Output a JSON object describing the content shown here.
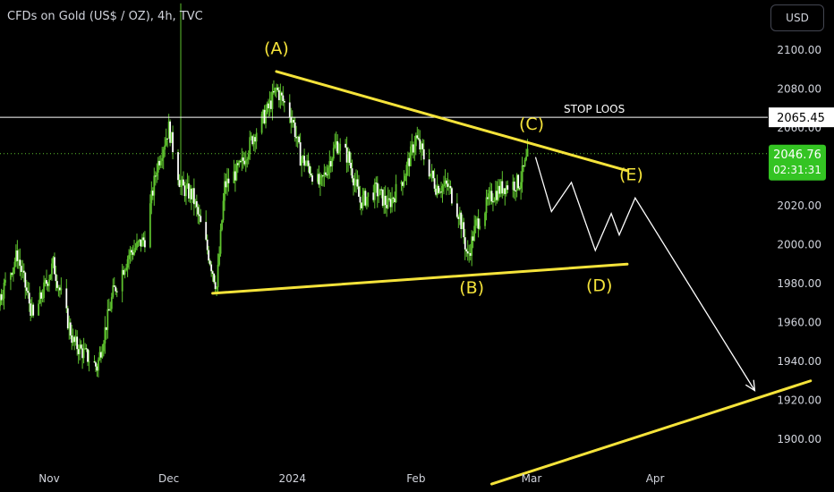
{
  "header": {
    "title": "CFDs on Gold (US$ / OZ), 4h, TVC",
    "currency_button": "USD"
  },
  "colors": {
    "background": "#000000",
    "candle": "#5ec22e",
    "annotation": "#f5e33a",
    "axis_text": "#d1d4dc",
    "price_label_bg": "#34c423"
  },
  "chart_data": {
    "type": "candlestick",
    "series": [
      {
        "name": "CFDs on Gold (US$ / OZ), 4h, TVC",
        "resolution": "4h"
      }
    ],
    "x_tick_labels": [
      "Nov",
      "Dec",
      "2024",
      "Feb",
      "Mar",
      "Apr"
    ],
    "y_ticks": [
      1900,
      1920,
      1940,
      1960,
      1980,
      2000,
      2020,
      2040,
      2060,
      2080,
      2100
    ],
    "y_tick_labels": [
      "1900.00",
      "1920.00",
      "1940.00",
      "1960.00",
      "1980.00",
      "2000.00",
      "2020.00",
      "2040.00",
      "2060.00",
      "2080.00",
      "2100.00"
    ],
    "ylim": [
      1877,
      2125
    ],
    "grid": false,
    "anchor_closes": [
      {
        "t": "2023-10-03",
        "v": 1975
      },
      {
        "t": "2023-10-10",
        "v": 2000
      },
      {
        "t": "2023-10-17",
        "v": 1960
      },
      {
        "t": "2023-10-24",
        "v": 1995
      },
      {
        "t": "2023-10-28",
        "v": 1962
      },
      {
        "t": "2023-11-02",
        "v": 1990
      },
      {
        "t": "2023-11-07",
        "v": 1950
      },
      {
        "t": "2023-11-13",
        "v": 1937
      },
      {
        "t": "2023-11-17",
        "v": 1975
      },
      {
        "t": "2023-11-21",
        "v": 1995
      },
      {
        "t": "2023-11-25",
        "v": 2003
      },
      {
        "t": "2023-11-28",
        "v": 2040
      },
      {
        "t": "2023-12-01",
        "v": 2060
      },
      {
        "t": "2023-12-04",
        "v": 2030
      },
      {
        "t": "2023-12-07",
        "v": 2025
      },
      {
        "t": "2023-12-11",
        "v": 1995
      },
      {
        "t": "2023-12-13",
        "v": 1978
      },
      {
        "t": "2023-12-15",
        "v": 2030
      },
      {
        "t": "2023-12-19",
        "v": 2040
      },
      {
        "t": "2023-12-22",
        "v": 2055
      },
      {
        "t": "2023-12-26",
        "v": 2070
      },
      {
        "t": "2023-12-28",
        "v": 2080
      },
      {
        "t": "2024-01-01",
        "v": 2065
      },
      {
        "t": "2024-01-03",
        "v": 2045
      },
      {
        "t": "2024-01-05",
        "v": 2040
      },
      {
        "t": "2024-01-08",
        "v": 2030
      },
      {
        "t": "2024-01-12",
        "v": 2052
      },
      {
        "t": "2024-01-15",
        "v": 2045
      },
      {
        "t": "2024-01-18",
        "v": 2022
      },
      {
        "t": "2024-01-22",
        "v": 2028
      },
      {
        "t": "2024-01-25",
        "v": 2020
      },
      {
        "t": "2024-01-29",
        "v": 2035
      },
      {
        "t": "2024-02-01",
        "v": 2055
      },
      {
        "t": "2024-02-03",
        "v": 2045
      },
      {
        "t": "2024-02-06",
        "v": 2030
      },
      {
        "t": "2024-02-09",
        "v": 2030
      },
      {
        "t": "2024-02-12",
        "v": 2015
      },
      {
        "t": "2024-02-14",
        "v": 1993
      },
      {
        "t": "2024-02-16",
        "v": 2010
      },
      {
        "t": "2024-02-20",
        "v": 2025
      },
      {
        "t": "2024-02-23",
        "v": 2030
      },
      {
        "t": "2024-02-27",
        "v": 2032
      },
      {
        "t": "2024-02-29",
        "v": 2045
      }
    ],
    "last_close": 2046.76,
    "annotations": {
      "wave_labels": [
        {
          "label": "(A)",
          "t": "2023-12-28",
          "v": 2098
        },
        {
          "label": "(B)",
          "t": "2024-02-15",
          "v": 1975
        },
        {
          "label": "(C)",
          "t": "2024-03-01",
          "v": 2059
        },
        {
          "label": "(D)",
          "t": "2024-03-18",
          "v": 1976
        },
        {
          "label": "(E)",
          "t": "2024-03-26",
          "v": 2033
        }
      ],
      "trendlines": [
        {
          "name": "upper-resistance-line",
          "from": {
            "t": "2023-12-28",
            "v": 2089
          },
          "to": {
            "t": "2024-03-25",
            "v": 2038
          }
        },
        {
          "name": "lower-support-line",
          "from": {
            "t": "2023-12-12",
            "v": 1975
          },
          "to": {
            "t": "2024-03-25",
            "v": 1990
          }
        },
        {
          "name": "long-support-line",
          "from": {
            "t": "2024-02-20",
            "v": 1877
          },
          "to": {
            "t": "2024-05-10",
            "v": 1930
          }
        }
      ],
      "projection_path": [
        {
          "t": "2024-03-02",
          "v": 2045
        },
        {
          "t": "2024-03-06",
          "v": 2017
        },
        {
          "t": "2024-03-11",
          "v": 2032
        },
        {
          "t": "2024-03-17",
          "v": 1997
        },
        {
          "t": "2024-03-21",
          "v": 2016
        },
        {
          "t": "2024-03-23",
          "v": 2005
        },
        {
          "t": "2024-03-27",
          "v": 2024
        },
        {
          "t": "2024-04-26",
          "v": 1925
        }
      ],
      "stop_line": {
        "label": "STOP LOOS",
        "price": 2065.45,
        "price_label": "2065.45"
      },
      "last_price": {
        "price": 2046.76,
        "price_label": "2046.76",
        "countdown": "02:31:31"
      }
    }
  }
}
